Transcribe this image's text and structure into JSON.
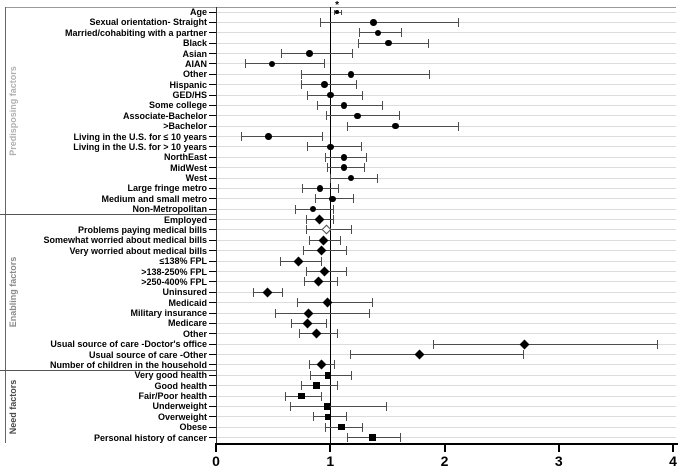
{
  "chart_data": {
    "type": "scatter",
    "subtype": "forest-plot",
    "title": "",
    "xlabel": "",
    "ylabel": "",
    "xlim": [
      0,
      4
    ],
    "x_ticks": [
      "0",
      "1",
      "2",
      "3",
      "4"
    ],
    "x_tick_values": [
      0,
      1,
      2,
      3,
      4
    ],
    "reference_line_x": 1,
    "grid": true,
    "legend": "none",
    "colors": {
      "marker": "#000000",
      "ci": "#4d4d4d",
      "grid": "#dcdcdc",
      "axis": "#000000",
      "divider": "#555555",
      "rail": "#666666"
    },
    "sections": [
      {
        "name": "Predisposing factors",
        "marker": "circle",
        "label_color": "#b0b0b0"
      },
      {
        "name": "Enabling factors",
        "marker": "diamond",
        "label_color": "#8a8a8a"
      },
      {
        "name": "Need factors",
        "marker": "square",
        "label_color": "#4a4a4a"
      }
    ],
    "rows": [
      {
        "label": "Age",
        "section": 0,
        "est": 1.06,
        "lo": 1.03,
        "hi": 1.1,
        "small": true,
        "note": "*"
      },
      {
        "label": "Sexual orientation- Straight",
        "section": 0,
        "est": 1.38,
        "lo": 0.91,
        "hi": 2.13
      },
      {
        "label": "Married/cohabiting with a partner",
        "section": 0,
        "est": 1.42,
        "lo": 1.25,
        "hi": 1.63
      },
      {
        "label": "Black",
        "section": 0,
        "est": 1.51,
        "lo": 1.24,
        "hi": 1.86
      },
      {
        "label": "Asian",
        "section": 0,
        "est": 0.82,
        "lo": 0.57,
        "hi": 1.2
      },
      {
        "label": "AIAN",
        "section": 0,
        "est": 0.49,
        "lo": 0.25,
        "hi": 0.95
      },
      {
        "label": "Other",
        "section": 0,
        "est": 1.18,
        "lo": 0.74,
        "hi": 1.87
      },
      {
        "label": "Hispanic",
        "section": 0,
        "est": 0.95,
        "lo": 0.74,
        "hi": 1.23
      },
      {
        "label": "GED/HS",
        "section": 0,
        "est": 1.0,
        "lo": 0.8,
        "hi": 1.29
      },
      {
        "label": "Some college",
        "section": 0,
        "est": 1.12,
        "lo": 0.88,
        "hi": 1.46
      },
      {
        "label": "Associate-Bachelor",
        "section": 0,
        "est": 1.24,
        "lo": 0.96,
        "hi": 1.61
      },
      {
        "label": ">Bachelor",
        "section": 0,
        "est": 1.57,
        "lo": 1.15,
        "hi": 2.13
      },
      {
        "label": "Living in the U.S. for ≤ 10 years",
        "section": 0,
        "est": 0.46,
        "lo": 0.22,
        "hi": 0.94
      },
      {
        "label": "Living in the U.S. for > 10 years",
        "section": 0,
        "est": 1.0,
        "lo": 0.8,
        "hi": 1.28
      },
      {
        "label": "NorthEast",
        "section": 0,
        "est": 1.12,
        "lo": 0.95,
        "hi": 1.32
      },
      {
        "label": "MidWest",
        "section": 0,
        "est": 1.12,
        "lo": 0.97,
        "hi": 1.3
      },
      {
        "label": "West",
        "section": 0,
        "est": 1.18,
        "lo": 1.0,
        "hi": 1.42
      },
      {
        "label": "Large fringe metro",
        "section": 0,
        "est": 0.91,
        "lo": 0.75,
        "hi": 1.08
      },
      {
        "label": "Medium and small metro",
        "section": 0,
        "est": 1.02,
        "lo": 0.87,
        "hi": 1.21
      },
      {
        "label": "Non-Metropolitan",
        "section": 0,
        "est": 0.85,
        "lo": 0.69,
        "hi": 1.03
      },
      {
        "label": "Employed",
        "section": 1,
        "est": 0.91,
        "lo": 0.79,
        "hi": 1.03
      },
      {
        "label": "Problems paying medical bills",
        "section": 1,
        "est": 0.97,
        "lo": 0.79,
        "hi": 1.19,
        "open": true
      },
      {
        "label": "Somewhat worried about medical bills",
        "section": 1,
        "est": 0.94,
        "lo": 0.81,
        "hi": 1.09
      },
      {
        "label": "Very worried about medical bills",
        "section": 1,
        "est": 0.92,
        "lo": 0.76,
        "hi": 1.15
      },
      {
        "label": "≤138% FPL",
        "section": 1,
        "est": 0.72,
        "lo": 0.56,
        "hi": 0.93
      },
      {
        "label": ">138-250% FPL",
        "section": 1,
        "est": 0.95,
        "lo": 0.79,
        "hi": 1.15
      },
      {
        "label": ">250-400% FPL",
        "section": 1,
        "est": 0.9,
        "lo": 0.77,
        "hi": 1.07
      },
      {
        "label": "Uninsured",
        "section": 1,
        "est": 0.45,
        "lo": 0.32,
        "hi": 0.59
      },
      {
        "label": "Medicaid",
        "section": 1,
        "est": 0.98,
        "lo": 0.71,
        "hi": 1.37
      },
      {
        "label": "Military insurance",
        "section": 1,
        "est": 0.81,
        "lo": 0.52,
        "hi": 1.35
      },
      {
        "label": "Medicare",
        "section": 1,
        "est": 0.8,
        "lo": 0.66,
        "hi": 0.97
      },
      {
        "label": "Other",
        "section": 1,
        "est": 0.88,
        "lo": 0.73,
        "hi": 1.07
      },
      {
        "label": "Usual source of care -Doctor's office",
        "section": 1,
        "est": 2.7,
        "lo": 1.9,
        "hi": 3.87
      },
      {
        "label": "Usual source of care -Other",
        "section": 1,
        "est": 1.78,
        "lo": 1.17,
        "hi": 2.7
      },
      {
        "label": "Number of children in the household",
        "section": 1,
        "est": 0.92,
        "lo": 0.81,
        "hi": 1.04
      },
      {
        "label": "Very good health",
        "section": 2,
        "est": 0.98,
        "lo": 0.82,
        "hi": 1.19
      },
      {
        "label": "Good health",
        "section": 2,
        "est": 0.88,
        "lo": 0.74,
        "hi": 1.07
      },
      {
        "label": "Fair/Poor health",
        "section": 2,
        "est": 0.75,
        "lo": 0.6,
        "hi": 0.93
      },
      {
        "label": "Underweight",
        "section": 2,
        "est": 0.97,
        "lo": 0.65,
        "hi": 1.5
      },
      {
        "label": "Overweight",
        "section": 2,
        "est": 0.98,
        "lo": 0.85,
        "hi": 1.15
      },
      {
        "label": "Obese",
        "section": 2,
        "est": 1.1,
        "lo": 0.95,
        "hi": 1.29
      },
      {
        "label": "Personal history of cancer",
        "section": 2,
        "est": 1.37,
        "lo": 1.15,
        "hi": 1.62
      }
    ]
  }
}
